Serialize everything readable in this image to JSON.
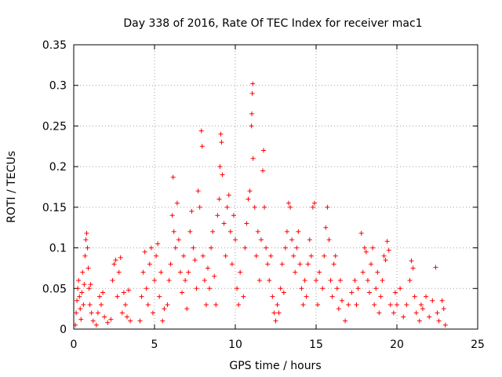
{
  "chart_data": {
    "type": "scatter",
    "title": "Day 338 of 2016, Rate Of TEC Index for receiver mac1",
    "xlabel": "GPS time / hours",
    "ylabel": "ROTI / TECUs",
    "xlim": [
      0,
      25
    ],
    "ylim": [
      0,
      0.35
    ],
    "xticks": [
      0,
      5,
      10,
      15,
      20,
      25
    ],
    "yticks": [
      0,
      0.05,
      0.1,
      0.15,
      0.2,
      0.25,
      0.3,
      0.35
    ],
    "xtick_labels": [
      "0",
      "5",
      "10",
      "15",
      "20",
      "25"
    ],
    "ytick_labels": [
      "0",
      "0.05",
      "0.1",
      "0.15",
      "0.2",
      "0.25",
      "0.3",
      "0.35"
    ],
    "grid": true,
    "marker": "+",
    "color": "#ff0000",
    "points": [
      [
        0.1,
        0.005
      ],
      [
        0.15,
        0.02
      ],
      [
        0.2,
        0.035
      ],
      [
        0.25,
        0.05
      ],
      [
        0.3,
        0.06
      ],
      [
        0.35,
        0.04
      ],
      [
        0.4,
        0.025
      ],
      [
        0.45,
        0.012
      ],
      [
        0.5,
        0.045
      ],
      [
        0.55,
        0.07
      ],
      [
        0.6,
        0.03
      ],
      [
        0.65,
        0.055
      ],
      [
        0.7,
        0.09
      ],
      [
        0.75,
        0.11
      ],
      [
        0.8,
        0.118
      ],
      [
        0.85,
        0.1
      ],
      [
        0.9,
        0.075
      ],
      [
        0.95,
        0.05
      ],
      [
        1.0,
        0.03
      ],
      [
        1.05,
        0.055
      ],
      [
        1.1,
        0.02
      ],
      [
        1.2,
        0.01
      ],
      [
        1.4,
        0.005
      ],
      [
        1.5,
        0.02
      ],
      [
        1.6,
        0.04
      ],
      [
        1.7,
        0.03
      ],
      [
        1.8,
        0.045
      ],
      [
        1.9,
        0.015
      ],
      [
        2.1,
        0.008
      ],
      [
        2.3,
        0.012
      ],
      [
        2.4,
        0.06
      ],
      [
        2.5,
        0.08
      ],
      [
        2.6,
        0.085
      ],
      [
        2.7,
        0.04
      ],
      [
        2.8,
        0.07
      ],
      [
        2.9,
        0.088
      ],
      [
        3.0,
        0.02
      ],
      [
        3.1,
        0.045
      ],
      [
        3.2,
        0.03
      ],
      [
        3.3,
        0.015
      ],
      [
        3.4,
        0.048
      ],
      [
        3.5,
        0.01
      ],
      [
        4.1,
        0.01
      ],
      [
        4.2,
        0.04
      ],
      [
        4.3,
        0.07
      ],
      [
        4.4,
        0.095
      ],
      [
        4.5,
        0.05
      ],
      [
        4.6,
        0.03
      ],
      [
        4.7,
        0.08
      ],
      [
        4.8,
        0.1
      ],
      [
        4.9,
        0.02
      ],
      [
        5.0,
        0.06
      ],
      [
        5.1,
        0.09
      ],
      [
        5.2,
        0.105
      ],
      [
        5.3,
        0.04
      ],
      [
        5.4,
        0.07
      ],
      [
        5.5,
        0.01
      ],
      [
        5.6,
        0.025
      ],
      [
        5.8,
        0.03
      ],
      [
        5.9,
        0.06
      ],
      [
        6.0,
        0.08
      ],
      [
        6.1,
        0.14
      ],
      [
        6.15,
        0.187
      ],
      [
        6.2,
        0.12
      ],
      [
        6.3,
        0.1
      ],
      [
        6.4,
        0.155
      ],
      [
        6.5,
        0.11
      ],
      [
        6.6,
        0.07
      ],
      [
        6.7,
        0.045
      ],
      [
        6.8,
        0.09
      ],
      [
        6.9,
        0.06
      ],
      [
        7.0,
        0.025
      ],
      [
        7.1,
        0.07
      ],
      [
        7.2,
        0.12
      ],
      [
        7.3,
        0.145
      ],
      [
        7.4,
        0.1
      ],
      [
        7.5,
        0.085
      ],
      [
        7.6,
        0.05
      ],
      [
        7.7,
        0.17
      ],
      [
        7.8,
        0.15
      ],
      [
        7.9,
        0.244
      ],
      [
        7.95,
        0.225
      ],
      [
        8.0,
        0.09
      ],
      [
        8.1,
        0.06
      ],
      [
        8.2,
        0.03
      ],
      [
        8.3,
        0.075
      ],
      [
        8.4,
        0.05
      ],
      [
        8.5,
        0.1
      ],
      [
        8.6,
        0.12
      ],
      [
        8.7,
        0.065
      ],
      [
        8.8,
        0.03
      ],
      [
        8.9,
        0.14
      ],
      [
        9.0,
        0.16
      ],
      [
        9.05,
        0.2
      ],
      [
        9.1,
        0.24
      ],
      [
        9.15,
        0.23
      ],
      [
        9.2,
        0.19
      ],
      [
        9.3,
        0.13
      ],
      [
        9.4,
        0.09
      ],
      [
        9.5,
        0.15
      ],
      [
        9.6,
        0.165
      ],
      [
        9.7,
        0.12
      ],
      [
        9.8,
        0.08
      ],
      [
        9.9,
        0.14
      ],
      [
        10.0,
        0.11
      ],
      [
        10.1,
        0.05
      ],
      [
        10.2,
        0.03
      ],
      [
        10.3,
        0.07
      ],
      [
        10.5,
        0.04
      ],
      [
        10.6,
        0.1
      ],
      [
        10.7,
        0.13
      ],
      [
        10.8,
        0.16
      ],
      [
        10.9,
        0.17
      ],
      [
        11.0,
        0.25
      ],
      [
        11.02,
        0.265
      ],
      [
        11.05,
        0.29
      ],
      [
        11.08,
        0.302
      ],
      [
        11.1,
        0.21
      ],
      [
        11.2,
        0.15
      ],
      [
        11.3,
        0.09
      ],
      [
        11.4,
        0.12
      ],
      [
        11.5,
        0.06
      ],
      [
        11.6,
        0.11
      ],
      [
        11.7,
        0.195
      ],
      [
        11.75,
        0.22
      ],
      [
        11.8,
        0.15
      ],
      [
        11.9,
        0.1
      ],
      [
        12.0,
        0.08
      ],
      [
        12.1,
        0.06
      ],
      [
        12.2,
        0.09
      ],
      [
        12.3,
        0.04
      ],
      [
        12.4,
        0.02
      ],
      [
        12.5,
        0.01
      ],
      [
        12.6,
        0.03
      ],
      [
        12.7,
        0.02
      ],
      [
        12.8,
        0.05
      ],
      [
        12.9,
        0.08
      ],
      [
        13.0,
        0.045
      ],
      [
        13.1,
        0.1
      ],
      [
        13.2,
        0.12
      ],
      [
        13.3,
        0.155
      ],
      [
        13.4,
        0.15
      ],
      [
        13.5,
        0.11
      ],
      [
        13.6,
        0.09
      ],
      [
        13.7,
        0.07
      ],
      [
        13.8,
        0.1
      ],
      [
        13.9,
        0.12
      ],
      [
        14.0,
        0.08
      ],
      [
        14.1,
        0.05
      ],
      [
        14.2,
        0.03
      ],
      [
        14.3,
        0.06
      ],
      [
        14.4,
        0.04
      ],
      [
        14.5,
        0.08
      ],
      [
        14.6,
        0.11
      ],
      [
        14.7,
        0.09
      ],
      [
        14.8,
        0.15
      ],
      [
        14.9,
        0.155
      ],
      [
        15.0,
        0.06
      ],
      [
        15.1,
        0.03
      ],
      [
        15.2,
        0.07
      ],
      [
        15.4,
        0.05
      ],
      [
        15.5,
        0.09
      ],
      [
        15.6,
        0.125
      ],
      [
        15.7,
        0.15
      ],
      [
        15.8,
        0.11
      ],
      [
        15.9,
        0.06
      ],
      [
        16.0,
        0.04
      ],
      [
        16.1,
        0.08
      ],
      [
        16.2,
        0.09
      ],
      [
        16.3,
        0.05
      ],
      [
        16.4,
        0.025
      ],
      [
        16.5,
        0.06
      ],
      [
        16.6,
        0.035
      ],
      [
        16.8,
        0.01
      ],
      [
        17.0,
        0.03
      ],
      [
        17.2,
        0.045
      ],
      [
        17.4,
        0.06
      ],
      [
        17.5,
        0.03
      ],
      [
        17.6,
        0.05
      ],
      [
        17.8,
        0.118
      ],
      [
        17.9,
        0.07
      ],
      [
        18.0,
        0.1
      ],
      [
        18.1,
        0.095
      ],
      [
        18.2,
        0.06
      ],
      [
        18.3,
        0.045
      ],
      [
        18.4,
        0.08
      ],
      [
        18.5,
        0.1
      ],
      [
        18.6,
        0.03
      ],
      [
        18.7,
        0.05
      ],
      [
        18.8,
        0.07
      ],
      [
        18.9,
        0.02
      ],
      [
        19.0,
        0.04
      ],
      [
        19.1,
        0.06
      ],
      [
        19.2,
        0.09
      ],
      [
        19.3,
        0.085
      ],
      [
        19.4,
        0.108
      ],
      [
        19.5,
        0.097
      ],
      [
        19.6,
        0.03
      ],
      [
        19.8,
        0.02
      ],
      [
        19.9,
        0.045
      ],
      [
        20.0,
        0.03
      ],
      [
        20.2,
        0.05
      ],
      [
        20.4,
        0.015
      ],
      [
        20.6,
        0.03
      ],
      [
        20.8,
        0.06
      ],
      [
        20.9,
        0.084
      ],
      [
        21.0,
        0.075
      ],
      [
        21.1,
        0.04
      ],
      [
        21.2,
        0.02
      ],
      [
        21.4,
        0.01
      ],
      [
        21.5,
        0.03
      ],
      [
        21.6,
        0.025
      ],
      [
        21.8,
        0.04
      ],
      [
        22.0,
        0.015
      ],
      [
        22.2,
        0.035
      ],
      [
        22.4,
        0.076
      ],
      [
        22.5,
        0.02
      ],
      [
        22.6,
        0.01
      ],
      [
        22.8,
        0.035
      ],
      [
        22.9,
        0.025
      ],
      [
        23.0,
        0.005
      ]
    ]
  }
}
